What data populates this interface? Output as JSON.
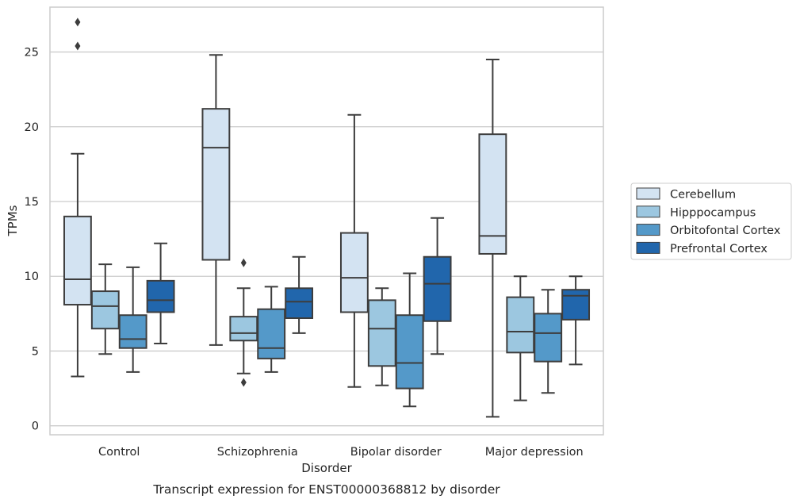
{
  "caption": "Transcript expression for ENST00000368812 by disorder",
  "chart_data": {
    "type": "box",
    "title": "",
    "xlabel": "Disorder",
    "ylabel": "TPMs",
    "ylim": [
      -0.6,
      28.0
    ],
    "yticks": [
      0,
      5,
      10,
      15,
      20,
      25
    ],
    "grid": "horizontal",
    "legend_position": "right",
    "categories": [
      "Control",
      "Schizophrenia",
      "Bipolar disorder",
      "Major depression"
    ],
    "series": [
      {
        "name": "Cerebellum",
        "color": "#d3e3f2",
        "boxes": [
          {
            "whisker_low": 3.3,
            "q1": 8.1,
            "median": 9.8,
            "q3": 14.0,
            "whisker_high": 18.2,
            "outliers": [
              25.4,
              27.0
            ]
          },
          {
            "whisker_low": 5.4,
            "q1": 11.1,
            "median": 18.6,
            "q3": 21.2,
            "whisker_high": 24.8,
            "outliers": []
          },
          {
            "whisker_low": 2.6,
            "q1": 7.6,
            "median": 9.9,
            "q3": 12.9,
            "whisker_high": 20.8,
            "outliers": []
          },
          {
            "whisker_low": 0.6,
            "q1": 11.5,
            "median": 12.7,
            "q3": 19.5,
            "whisker_high": 24.5,
            "outliers": []
          }
        ]
      },
      {
        "name": "Hipppocampus",
        "color": "#9cc7e0",
        "boxes": [
          {
            "whisker_low": 4.8,
            "q1": 6.5,
            "median": 8.0,
            "q3": 9.0,
            "whisker_high": 10.8,
            "outliers": []
          },
          {
            "whisker_low": 3.5,
            "q1": 5.7,
            "median": 6.2,
            "q3": 7.3,
            "whisker_high": 9.2,
            "outliers": [
              2.9,
              10.9
            ]
          },
          {
            "whisker_low": 2.7,
            "q1": 4.0,
            "median": 6.5,
            "q3": 8.4,
            "whisker_high": 9.2,
            "outliers": []
          },
          {
            "whisker_low": 1.7,
            "q1": 4.9,
            "median": 6.3,
            "q3": 8.6,
            "whisker_high": 10.0,
            "outliers": []
          }
        ]
      },
      {
        "name": "Orbitofontal Cortex",
        "color": "#5499c9",
        "boxes": [
          {
            "whisker_low": 3.6,
            "q1": 5.2,
            "median": 5.8,
            "q3": 7.4,
            "whisker_high": 10.6,
            "outliers": []
          },
          {
            "whisker_low": 3.6,
            "q1": 4.5,
            "median": 5.2,
            "q3": 7.8,
            "whisker_high": 9.3,
            "outliers": []
          },
          {
            "whisker_low": 1.3,
            "q1": 2.5,
            "median": 4.2,
            "q3": 7.4,
            "whisker_high": 10.2,
            "outliers": []
          },
          {
            "whisker_low": 2.2,
            "q1": 4.3,
            "median": 6.2,
            "q3": 7.5,
            "whisker_high": 9.1,
            "outliers": []
          }
        ]
      },
      {
        "name": "Prefrontal Cortex",
        "color": "#2166ac",
        "boxes": [
          {
            "whisker_low": 5.5,
            "q1": 7.6,
            "median": 8.4,
            "q3": 9.7,
            "whisker_high": 12.2,
            "outliers": []
          },
          {
            "whisker_low": 6.2,
            "q1": 7.2,
            "median": 8.3,
            "q3": 9.2,
            "whisker_high": 11.3,
            "outliers": []
          },
          {
            "whisker_low": 4.8,
            "q1": 7.0,
            "median": 9.5,
            "q3": 11.3,
            "whisker_high": 13.9,
            "outliers": []
          },
          {
            "whisker_low": 4.1,
            "q1": 7.1,
            "median": 8.7,
            "q3": 9.1,
            "whisker_high": 10.0,
            "outliers": []
          }
        ]
      }
    ]
  }
}
